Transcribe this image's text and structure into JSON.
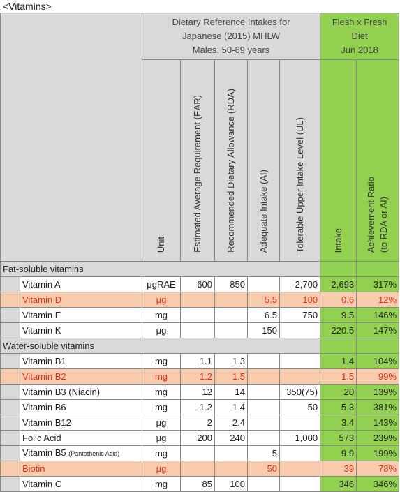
{
  "title": "<Vitamins>",
  "header": {
    "dri": [
      "Dietary Reference Intakes for",
      "Japanese (2015) MHLW",
      "Males, 50-69 years"
    ],
    "ours": [
      "Flesh x Fresh",
      "Diet",
      "Jun 2018"
    ],
    "columns": [
      [
        "Unit"
      ],
      [
        "Estimated Average Requirement (EAR)"
      ],
      [
        "Recommended Dietary Allowance (RDA)"
      ],
      [
        "Adequate Intake (AI)"
      ],
      [
        "Tolerable Upper Intake Level (UL)"
      ],
      [
        "Intake"
      ],
      [
        "Achievement Ratio",
        "(to RDA or AI)"
      ]
    ]
  },
  "sections": [
    {
      "title": "Fat-soluble vitamins",
      "rows": [
        {
          "name": "Vitamin A",
          "cells": {
            "unit": "μgRAE",
            "ear": "600",
            "rda": "850",
            "ul": "2,700",
            "intake": "2,693",
            "ratio": "317%"
          }
        },
        {
          "name": "Vitamin D",
          "highlight": true,
          "cells": {
            "unit": "μg",
            "ai": "5.5",
            "ul": "100",
            "intake": "0.6",
            "ratio": "12%"
          }
        },
        {
          "name": "Vitamin E",
          "cells": {
            "unit": "mg",
            "ai": "6.5",
            "ul": "750",
            "intake": "9.5",
            "ratio": "146%"
          }
        },
        {
          "name": "Vitamin K",
          "cells": {
            "unit": "μg",
            "ai": "150",
            "intake": "220.5",
            "ratio": "147%"
          }
        }
      ]
    },
    {
      "title": "Water-soluble vitamins",
      "rows": [
        {
          "name": "Vitamin B1",
          "cells": {
            "unit": "mg",
            "ear": "1.1",
            "rda": "1.3",
            "intake": "1.4",
            "ratio": "104%"
          }
        },
        {
          "name": "Vitamin B2",
          "highlight": true,
          "cells": {
            "unit": "mg",
            "ear": "1.2",
            "rda": "1.5",
            "intake": "1.5",
            "ratio": "99%"
          }
        },
        {
          "name": "Vitamin B3 (Niacin)",
          "cells": {
            "unit": "mg",
            "ear": "12",
            "rda": "14",
            "ul": "350(75)",
            "intake": "20",
            "ratio": "139%"
          }
        },
        {
          "name": "Vitamin B6",
          "cells": {
            "unit": "mg",
            "ear": "1.2",
            "rda": "1.4",
            "ul": "50",
            "intake": "5.3",
            "ratio": "381%"
          }
        },
        {
          "name": "Vitamin B12",
          "cells": {
            "unit": "μg",
            "ear": "2",
            "rda": "2.4",
            "intake": "3.4",
            "ratio": "143%"
          }
        },
        {
          "name": "Folic Acid",
          "cells": {
            "unit": "μg",
            "ear": "200",
            "rda": "240",
            "ul": "1,000",
            "intake": "573",
            "ratio": "239%"
          }
        },
        {
          "name": "Vitamin B5",
          "note": "(Pantothenic Acid)",
          "cells": {
            "unit": "mg",
            "ai": "5",
            "intake": "9.9",
            "ratio": "199%"
          }
        },
        {
          "name": "Biotin",
          "highlight": true,
          "cells": {
            "unit": "μg",
            "ai": "50",
            "intake": "39",
            "ratio": "78%"
          }
        },
        {
          "name": "Vitamin C",
          "cells": {
            "unit": "mg",
            "ear": "85",
            "rda": "100",
            "intake": "346",
            "ratio": "346%"
          }
        }
      ]
    }
  ]
}
